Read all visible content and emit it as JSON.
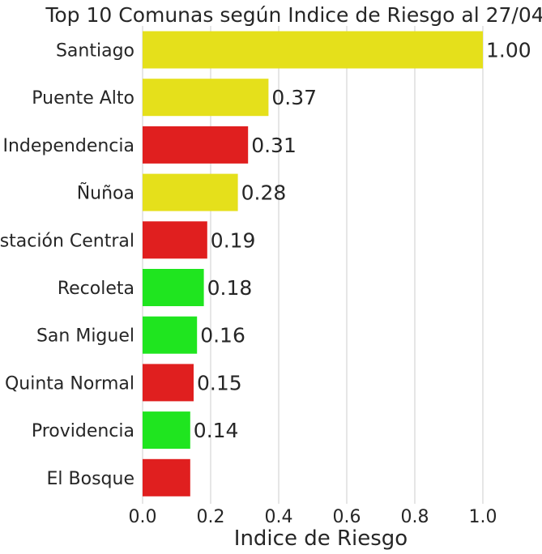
{
  "chart_data": {
    "type": "bar",
    "orientation": "horizontal",
    "title": "Top 10 Comunas según  Indice de Riesgo al 27/04",
    "xlabel": "Indice de Riesgo",
    "ylabel": "",
    "xlim": [
      0,
      1.07
    ],
    "xticks": [
      0.0,
      0.2,
      0.4,
      0.6,
      0.8,
      1.0
    ],
    "xtick_labels": [
      "0.0",
      "0.2",
      "0.4",
      "0.6",
      "0.8",
      "1.0"
    ],
    "grid": "vertical",
    "categories": [
      "Santiago",
      "Puente Alto",
      "Independencia",
      "Ñuñoa",
      "Estación Central",
      "Recoleta",
      "San Miguel",
      "Quinta Normal",
      "Providencia",
      "El Bosque"
    ],
    "values": [
      1.0,
      0.37,
      0.31,
      0.28,
      0.19,
      0.18,
      0.16,
      0.15,
      0.14,
      0.14
    ],
    "value_labels": [
      "1.00",
      "0.37",
      "0.31",
      "0.28",
      "0.19",
      "0.18",
      "0.16",
      "0.15",
      "0.14",
      ""
    ],
    "bar_colors": [
      "#e5e01b",
      "#e5e01b",
      "#e01f1f",
      "#e5e01b",
      "#e01f1f",
      "#1fe51f",
      "#1fe51f",
      "#e01f1f",
      "#1fe51f",
      "#e01f1f"
    ]
  }
}
